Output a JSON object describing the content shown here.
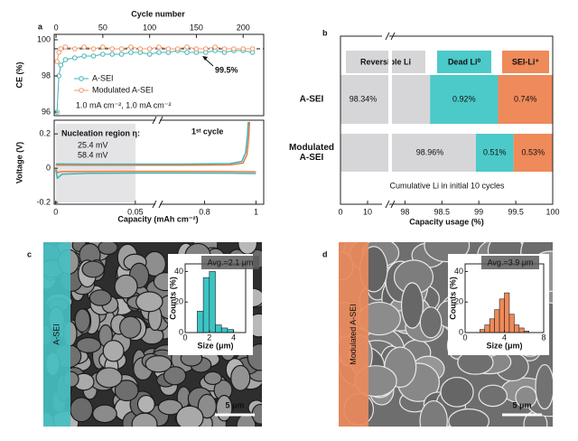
{
  "chart_data": [
    {
      "type": "line",
      "panel": "a",
      "xaxis": "top",
      "markers": true,
      "xlabel": "Cycle number",
      "ylabel": "CE (%)",
      "xlim": [
        -2,
        222
      ],
      "xticks": [
        0,
        50,
        100,
        150,
        200
      ],
      "ylim": [
        95.8,
        100.3
      ],
      "yticks": [
        96,
        98,
        100
      ],
      "x": [
        1,
        3,
        5,
        10,
        20,
        30,
        40,
        50,
        60,
        70,
        80,
        90,
        100,
        110,
        120,
        130,
        140,
        150,
        160,
        170,
        180,
        190,
        200,
        210
      ],
      "series": [
        {
          "name": "A-SEI",
          "color": "#45b5b8",
          "values": [
            96.0,
            98.0,
            98.6,
            98.9,
            99.0,
            99.1,
            99.1,
            99.2,
            99.2,
            99.2,
            99.3,
            99.3,
            99.2,
            99.3,
            99.3,
            99.4,
            99.3,
            99.3,
            99.3,
            99.4,
            99.3,
            99.4,
            99.4,
            99.3
          ]
        },
        {
          "name": "Modulated A-SEI",
          "color": "#ef9a6c",
          "values": [
            98.8,
            99.3,
            99.5,
            99.6,
            99.5,
            99.6,
            99.5,
            99.6,
            99.5,
            99.5,
            99.6,
            99.5,
            99.5,
            99.6,
            99.5,
            99.5,
            99.6,
            99.5,
            99.5,
            99.6,
            99.5,
            99.5,
            99.5,
            99.5
          ]
        }
      ],
      "reference_line": 99.5,
      "annotation": "99.5%",
      "condition": "1.0 mA cm⁻², 1.0 mA cm⁻²"
    },
    {
      "type": "line",
      "xlabel": "Capacity (mAh cm⁻²)",
      "ylabel": "Voltage (V)",
      "xlim": [
        [
          -0.001,
          0.062
        ],
        [
          0.63,
          1.03
        ]
      ],
      "xticks": [
        0,
        0.05,
        0.8,
        1
      ],
      "ylim": [
        -0.21,
        0.28
      ],
      "yticks": [
        0.2,
        0,
        -0.2
      ],
      "annotations": [
        "Nucleation region η:",
        "1ˢᵗ cycle"
      ],
      "series": [
        {
          "name": "Modulated A-SEI",
          "color": "#ef7a3c",
          "label": "25.4 mV",
          "x": [
            0,
            0.001,
            0.004,
            0.02,
            0.05,
            0.7,
            0.9,
            1.0,
            null,
            0,
            0.02,
            0.05,
            0.7,
            0.9,
            0.95,
            0.965,
            0.972,
            0.975
          ],
          "values": [
            -0.005,
            -0.025,
            -0.02,
            -0.019,
            -0.018,
            -0.018,
            -0.019,
            -0.021,
            null,
            0.018,
            0.017,
            0.017,
            0.017,
            0.019,
            0.03,
            0.08,
            0.18,
            0.27
          ]
        },
        {
          "name": "A-SEI",
          "color": "#3fb3b8",
          "label": "58.4 mV",
          "x": [
            0,
            0.001,
            0.004,
            0.02,
            0.05,
            0.7,
            0.9,
            1.0,
            null,
            0,
            0.02,
            0.05,
            0.7,
            0.9,
            0.945,
            0.96,
            0.967,
            0.97
          ],
          "values": [
            -0.01,
            -0.058,
            -0.035,
            -0.03,
            -0.028,
            -0.028,
            -0.029,
            -0.031,
            null,
            0.025,
            0.024,
            0.024,
            0.024,
            0.027,
            0.04,
            0.09,
            0.19,
            0.27
          ]
        }
      ]
    },
    {
      "type": "bar",
      "panel": "b",
      "orientation": "horizontal",
      "stacked": true,
      "categories": [
        "A-SEI",
        "Modulated A-SEI"
      ],
      "series": [
        {
          "name": "Reversible Li",
          "color": "#d6d6d9",
          "values": [
            98.34,
            98.96
          ],
          "value_labels": [
            "98.34%",
            "98.96%"
          ]
        },
        {
          "name": "Dead Li⁰",
          "color": "#4cc9c9",
          "values": [
            0.92,
            0.51
          ],
          "value_labels": [
            "0.92%",
            "0.51%"
          ]
        },
        {
          "name": "SEI-Li⁺",
          "color": "#ef8a5a",
          "values": [
            0.74,
            0.53
          ],
          "value_labels": [
            "0.74%",
            "0.53%"
          ]
        }
      ],
      "xlabel": "Capacity usage (%)",
      "xlim": [
        [
          0,
          15
        ],
        [
          97.8,
          100
        ]
      ],
      "xticks": [
        0,
        10,
        98,
        98.5,
        99,
        99.5,
        100
      ],
      "note": "Cumulative Li in initial 10 cycles"
    },
    {
      "type": "histogram",
      "panel": "c",
      "image_label": "A-SEI",
      "scale_bar": "5 μm",
      "annotation": "Avg.=2.1 μm",
      "color": "#3cc4c4",
      "bins": [
        1.0,
        1.5,
        2.0,
        2.5,
        3.0,
        3.5,
        4.0
      ],
      "values": [
        14,
        36,
        40,
        5,
        3,
        2
      ],
      "xlabel": "Size (μm)",
      "ylabel": "Counts (%)",
      "xlim": [
        0,
        5
      ],
      "xticks": [
        0,
        2,
        4
      ],
      "ylim": [
        0,
        45
      ],
      "yticks": [
        0,
        20,
        40
      ]
    },
    {
      "type": "histogram",
      "panel": "d",
      "image_label": "Modulated A-SEI",
      "scale_bar": "5 μm",
      "annotation": "Avg.=3.9 μm",
      "color": "#ef8a5a",
      "bins": [
        1.5,
        2.0,
        2.5,
        3.0,
        3.5,
        4.0,
        4.5,
        5.0,
        5.5,
        6.0,
        6.5
      ],
      "values": [
        2,
        5,
        9,
        15,
        22,
        26,
        12,
        5,
        3,
        1
      ],
      "xlabel": "Size (μm)",
      "ylabel": "Counts (%)",
      "xlim": [
        0,
        8
      ],
      "xticks": [
        0,
        4,
        8
      ],
      "ylim": [
        0,
        45
      ],
      "yticks": [
        0,
        20,
        40
      ]
    }
  ]
}
